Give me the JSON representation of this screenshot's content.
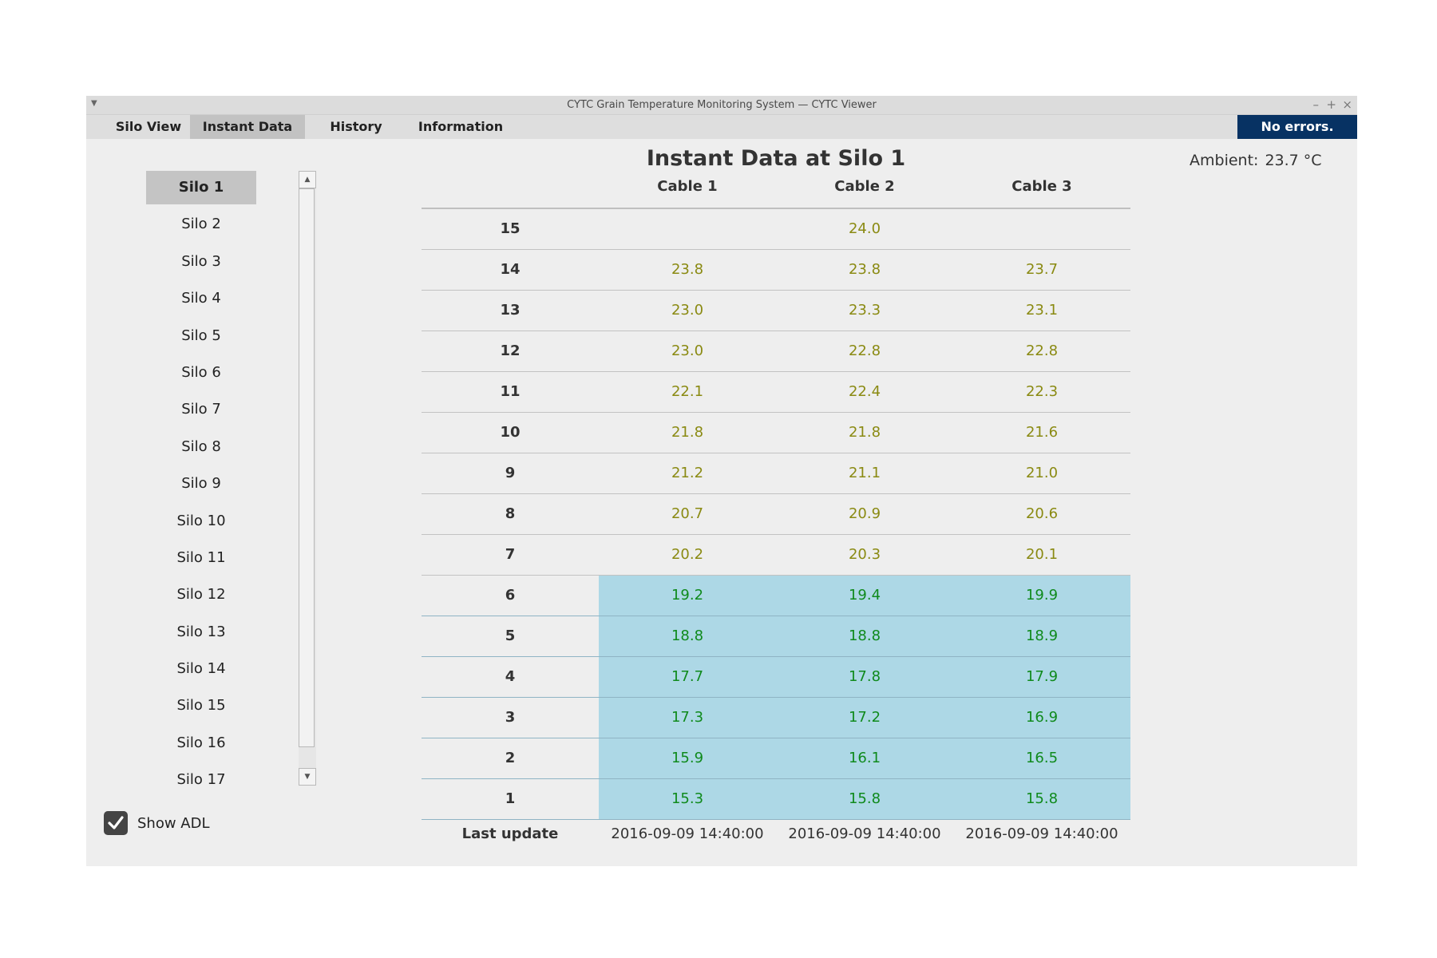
{
  "window": {
    "title": "CYTC Grain Temperature Monitoring System — CYTC Viewer",
    "controls": {
      "minimize": "–",
      "maximize": "+",
      "close": "×"
    }
  },
  "tabs": [
    {
      "label": "Silo View"
    },
    {
      "label": "Instant Data"
    },
    {
      "label": "History"
    },
    {
      "label": "Information"
    }
  ],
  "status": "No errors.",
  "silos": [
    "Silo 1",
    "Silo 2",
    "Silo 3",
    "Silo 4",
    "Silo 5",
    "Silo 6",
    "Silo 7",
    "Silo 8",
    "Silo 9",
    "Silo 10",
    "Silo 11",
    "Silo 12",
    "Silo 13",
    "Silo 14",
    "Silo 15",
    "Silo 16",
    "Silo 17"
  ],
  "show_adl": {
    "label": "Show ADL",
    "checked": true
  },
  "main": {
    "title": "Instant Data at Silo 1",
    "ambient_label": "Ambient:",
    "ambient_value": "23.7 °C",
    "columns": [
      "Cable 1",
      "Cable 2",
      "Cable 3"
    ],
    "rows": [
      {
        "level": "15",
        "values": [
          "",
          "24.0",
          ""
        ]
      },
      {
        "level": "14",
        "values": [
          "23.8",
          "23.8",
          "23.7"
        ]
      },
      {
        "level": "13",
        "values": [
          "23.0",
          "23.3",
          "23.1"
        ]
      },
      {
        "level": "12",
        "values": [
          "23.0",
          "22.8",
          "22.8"
        ]
      },
      {
        "level": "11",
        "values": [
          "22.1",
          "22.4",
          "22.3"
        ]
      },
      {
        "level": "10",
        "values": [
          "21.8",
          "21.8",
          "21.6"
        ]
      },
      {
        "level": "9",
        "values": [
          "21.2",
          "21.1",
          "21.0"
        ]
      },
      {
        "level": "8",
        "values": [
          "20.7",
          "20.9",
          "20.6"
        ]
      },
      {
        "level": "7",
        "values": [
          "20.2",
          "20.3",
          "20.1"
        ]
      },
      {
        "level": "6",
        "values": [
          "19.2",
          "19.4",
          "19.9"
        ]
      },
      {
        "level": "5",
        "values": [
          "18.8",
          "18.8",
          "18.9"
        ]
      },
      {
        "level": "4",
        "values": [
          "17.7",
          "17.8",
          "17.9"
        ]
      },
      {
        "level": "3",
        "values": [
          "17.3",
          "17.2",
          "16.9"
        ]
      },
      {
        "level": "2",
        "values": [
          "15.9",
          "16.1",
          "16.5"
        ]
      },
      {
        "level": "1",
        "values": [
          "15.3",
          "15.8",
          "15.8"
        ]
      }
    ],
    "last_update_label": "Last update",
    "last_update": [
      "2016-09-09 14:40:00",
      "2016-09-09 14:40:00",
      "2016-09-09 14:40:00"
    ]
  },
  "colors": {
    "status_bg": "#073263",
    "warm_text": "#8a8a12",
    "cool_text": "#0f8a1c",
    "cool_bg": "#add8e6"
  }
}
